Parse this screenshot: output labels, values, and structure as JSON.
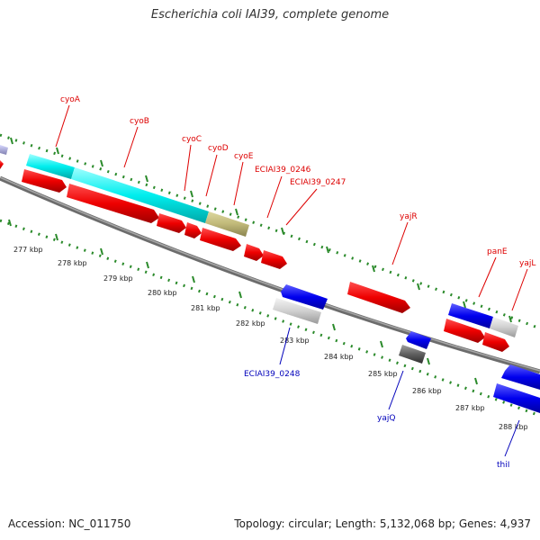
{
  "title": "Escherichia coli IAI39, complete genome",
  "accession": "Accession: NC_011750",
  "topology": "Topology: circular; Length: 5,132,068 bp; Genes: 4,937",
  "colors": {
    "forward_label": "#dd0000",
    "reverse_label": "#0000bb",
    "backbone": "#808080",
    "ticks": "#2a8a2a"
  },
  "kbp_labels": [
    "277 kbp",
    "278 kbp",
    "279 kbp",
    "280 kbp",
    "281 kbp",
    "282 kbp",
    "283 kbp",
    "284 kbp",
    "285 kbp",
    "286 kbp",
    "287 kbp",
    "288 kbp"
  ],
  "forward_gene_labels": [
    "cyoA",
    "cyoB",
    "cyoC",
    "cyoD",
    "cyoE",
    "ECIAI39_0246",
    "ECIAI39_0247",
    "yajR",
    "panE",
    "yajL"
  ],
  "reverse_gene_labels": [
    "ECIAI39_0248",
    "yajQ",
    "thiI"
  ]
}
